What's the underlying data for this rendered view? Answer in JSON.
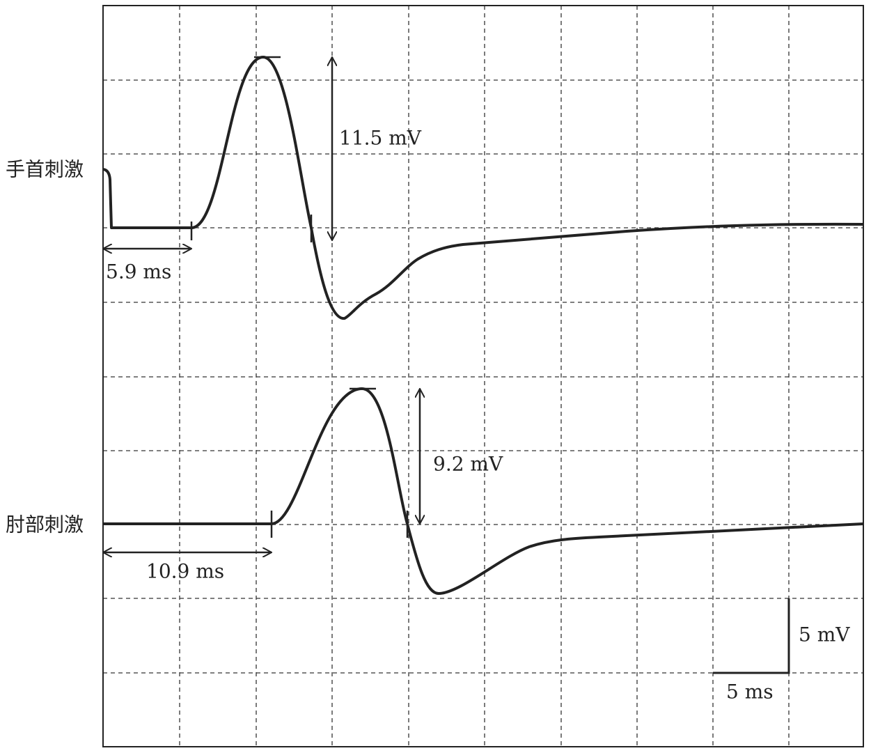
{
  "traces": [
    {
      "label": "手首刺激",
      "amplitude": "11.5 mV",
      "latency": "5.9 ms"
    },
    {
      "label": "肘部刺激",
      "amplitude": "9.2 mV",
      "latency": "10.9 ms"
    }
  ],
  "scale": {
    "voltage": "5 mV",
    "time": "5 ms"
  }
}
